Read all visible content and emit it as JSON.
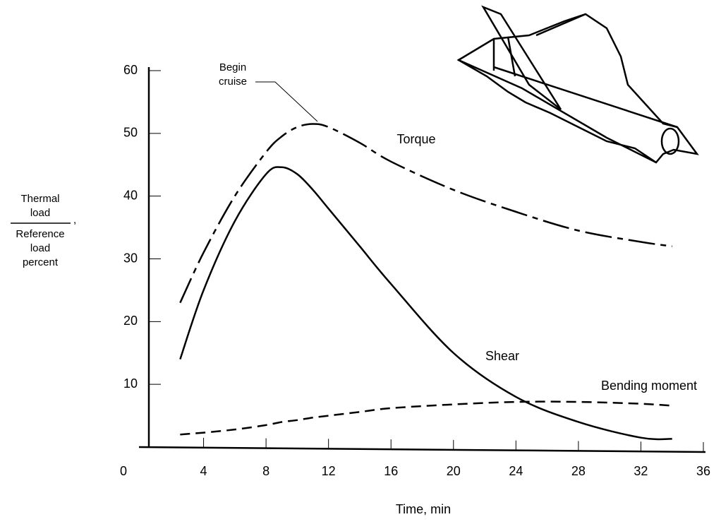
{
  "chart_data": {
    "type": "line",
    "xlabel": "Time, min",
    "ylabel_numerator": [
      "Thermal",
      "load"
    ],
    "ylabel_denominator": [
      "Reference",
      "load",
      "percent"
    ],
    "ylabel_mark": ",",
    "annotation": [
      "Begin",
      "cruise"
    ],
    "x": [
      2.5,
      4,
      6,
      8,
      9,
      10,
      11,
      12,
      14,
      16,
      20,
      24,
      28,
      32,
      34
    ],
    "series": [
      {
        "name": "Torque",
        "color": "#000000",
        "dash": "dash-dot",
        "values": [
          23,
          31,
          40,
          47,
          49.5,
          51,
          51.5,
          51,
          48.5,
          45.5,
          41,
          37.5,
          34.5,
          32.7,
          32
        ]
      },
      {
        "name": "Shear",
        "color": "#000000",
        "dash": "solid",
        "values": [
          14,
          25,
          36,
          43.5,
          44.6,
          43.5,
          41,
          38,
          32,
          26,
          15,
          8,
          4,
          1.5,
          1.3
        ]
      },
      {
        "name": "Bending moment",
        "color": "#000000",
        "dash": "dashed",
        "values": [
          2,
          2.3,
          2.8,
          3.5,
          4,
          4.3,
          4.7,
          5,
          5.6,
          6.2,
          6.8,
          7.2,
          7.2,
          6.9,
          6.6
        ]
      }
    ],
    "xlim": [
      0,
      36
    ],
    "xticks": [
      0,
      4,
      8,
      12,
      16,
      20,
      24,
      28,
      32,
      36
    ],
    "ylim": [
      0,
      60
    ],
    "yticks": [
      10,
      20,
      30,
      40,
      50,
      60
    ],
    "grid": false
  }
}
